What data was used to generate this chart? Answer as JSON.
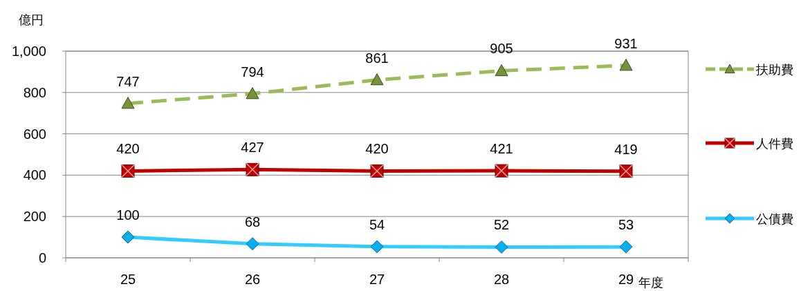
{
  "chart_data": {
    "type": "line",
    "ylabel": "億円",
    "xlabel": "年度",
    "categories": [
      "25",
      "26",
      "27",
      "28",
      "29"
    ],
    "ylim": [
      0,
      1000
    ],
    "yticks": [
      0,
      200,
      400,
      600,
      800,
      {
        "value": 1000,
        "label": "1,000"
      }
    ],
    "grid": "y",
    "legend": "right",
    "data_labels": true,
    "series": [
      {
        "name": "扶助費",
        "color": "#9bbb59",
        "marker": "triangle",
        "line_style": "dashed",
        "values": [
          747,
          794,
          861,
          905,
          931
        ]
      },
      {
        "name": "人件費",
        "color": "#c00000",
        "marker": "square",
        "line_style": "solid",
        "values": [
          420,
          427,
          420,
          421,
          419
        ]
      },
      {
        "name": "公債費",
        "color": "#33ccff",
        "marker": "diamond",
        "line_style": "solid",
        "values": [
          100,
          68,
          54,
          52,
          53
        ]
      }
    ]
  }
}
